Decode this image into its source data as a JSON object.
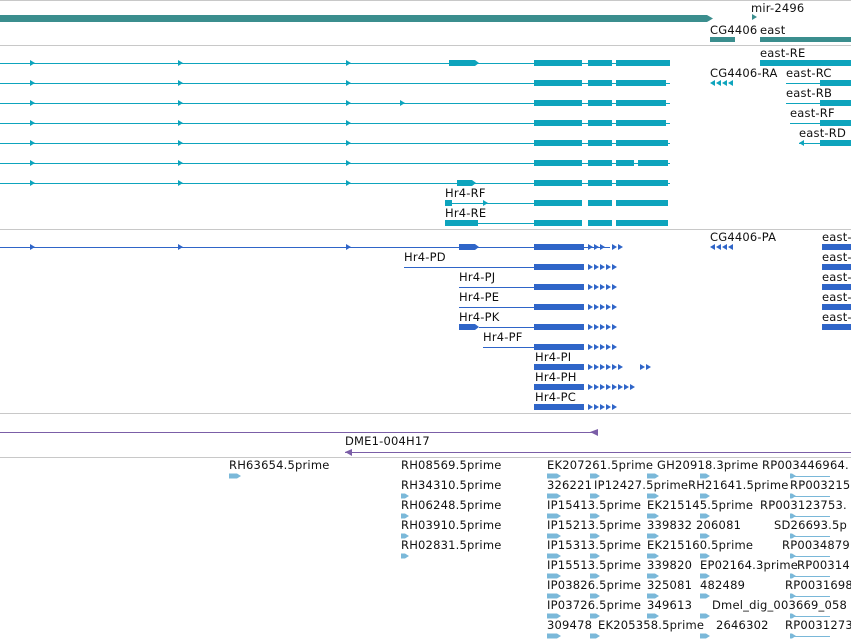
{
  "labels": {
    "mir": "mir-2496",
    "cg4406": "CG4406",
    "east": "east",
    "east_re": "east-RE",
    "cg4406_ra": "CG4406-RA",
    "east_rc": "east-RC",
    "east_rb": "east-RB",
    "east_rf": "east-RF",
    "east_rd": "east-RD",
    "hr4_rf": "Hr4-RF",
    "hr4_re": "Hr4-RE",
    "cg4406_pa": "CG4406-PA",
    "hr4_pd": "Hr4-PD",
    "hr4_pj": "Hr4-PJ",
    "hr4_pe": "Hr4-PE",
    "hr4_pk": "Hr4-PK",
    "hr4_pf": "Hr4-PF",
    "hr4_pi": "Hr4-PI",
    "hr4_ph": "Hr4-PH",
    "hr4_pc": "Hr4-PC",
    "east_p1": "east-",
    "east_p2": "east-",
    "east_p3": "east-",
    "east_p4": "east-",
    "east_p5": "east-",
    "dme1": "DME1-004H17"
  },
  "est_labels": [
    {
      "id": "rh63654",
      "text": "RH63654.5prime"
    },
    {
      "id": "rh08569",
      "text": "RH08569.5prime"
    },
    {
      "id": "rh34310",
      "text": "RH34310.5prime"
    },
    {
      "id": "rh06248",
      "text": "RH06248.5prime"
    },
    {
      "id": "rh03910",
      "text": "RH03910.5prime"
    },
    {
      "id": "rh02831",
      "text": "RH02831.5prime"
    },
    {
      "id": "ek207261",
      "text": "EK207261.5prime"
    },
    {
      "id": "gh20918",
      "text": "GH20918.3prime"
    },
    {
      "id": "rp0034469",
      "text": "RP003446964."
    },
    {
      "id": "c326221",
      "text": "326221"
    },
    {
      "id": "ip12427",
      "text": "IP12427.5prime"
    },
    {
      "id": "rh21641",
      "text": "RH21641.5prime"
    },
    {
      "id": "rp003215",
      "text": "RP003215"
    },
    {
      "id": "ip15413",
      "text": "IP15413.5prime"
    },
    {
      "id": "ek215145",
      "text": "EK215145.5prime"
    },
    {
      "id": "rp003123753",
      "text": "RP003123753."
    },
    {
      "id": "ip15213",
      "text": "IP15213.5prime"
    },
    {
      "id": "c339832",
      "text": "339832"
    },
    {
      "id": "c206081",
      "text": "206081"
    },
    {
      "id": "sd26693",
      "text": "SD26693.5p"
    },
    {
      "id": "ip15313",
      "text": "IP15313.5prime"
    },
    {
      "id": "ek215160",
      "text": "EK215160.5prime"
    },
    {
      "id": "rp0034879",
      "text": "RP0034879"
    },
    {
      "id": "ip15513",
      "text": "IP15513.5prime"
    },
    {
      "id": "c339820",
      "text": "339820"
    },
    {
      "id": "ep02164",
      "text": "EP02164.3prime"
    },
    {
      "id": "rp0031415",
      "text": "RP003141"
    },
    {
      "id": "ip03826",
      "text": "IP03826.5prime"
    },
    {
      "id": "c325081",
      "text": "325081"
    },
    {
      "id": "c482489",
      "text": "482489"
    },
    {
      "id": "rp0031698",
      "text": "RP0031698"
    },
    {
      "id": "ip03726",
      "text": "IP03726.5prime"
    },
    {
      "id": "c349613",
      "text": "349613"
    },
    {
      "id": "dmel_dig",
      "text": "Dmel_dig_003669_058"
    },
    {
      "id": "c309478",
      "text": "309478"
    },
    {
      "id": "ek205358",
      "text": "EK205358.5prime"
    },
    {
      "id": "c2646302",
      "text": "2646302"
    },
    {
      "id": "rp0031273",
      "text": "RP0031273"
    }
  ],
  "colors": {
    "gene": "#3b8e8e",
    "transcript": "#0ea4bd",
    "protein": "#2f65c8",
    "clone": "#7b5ea7",
    "est": "#7ab8d9",
    "separator": "#c8c8c8"
  }
}
